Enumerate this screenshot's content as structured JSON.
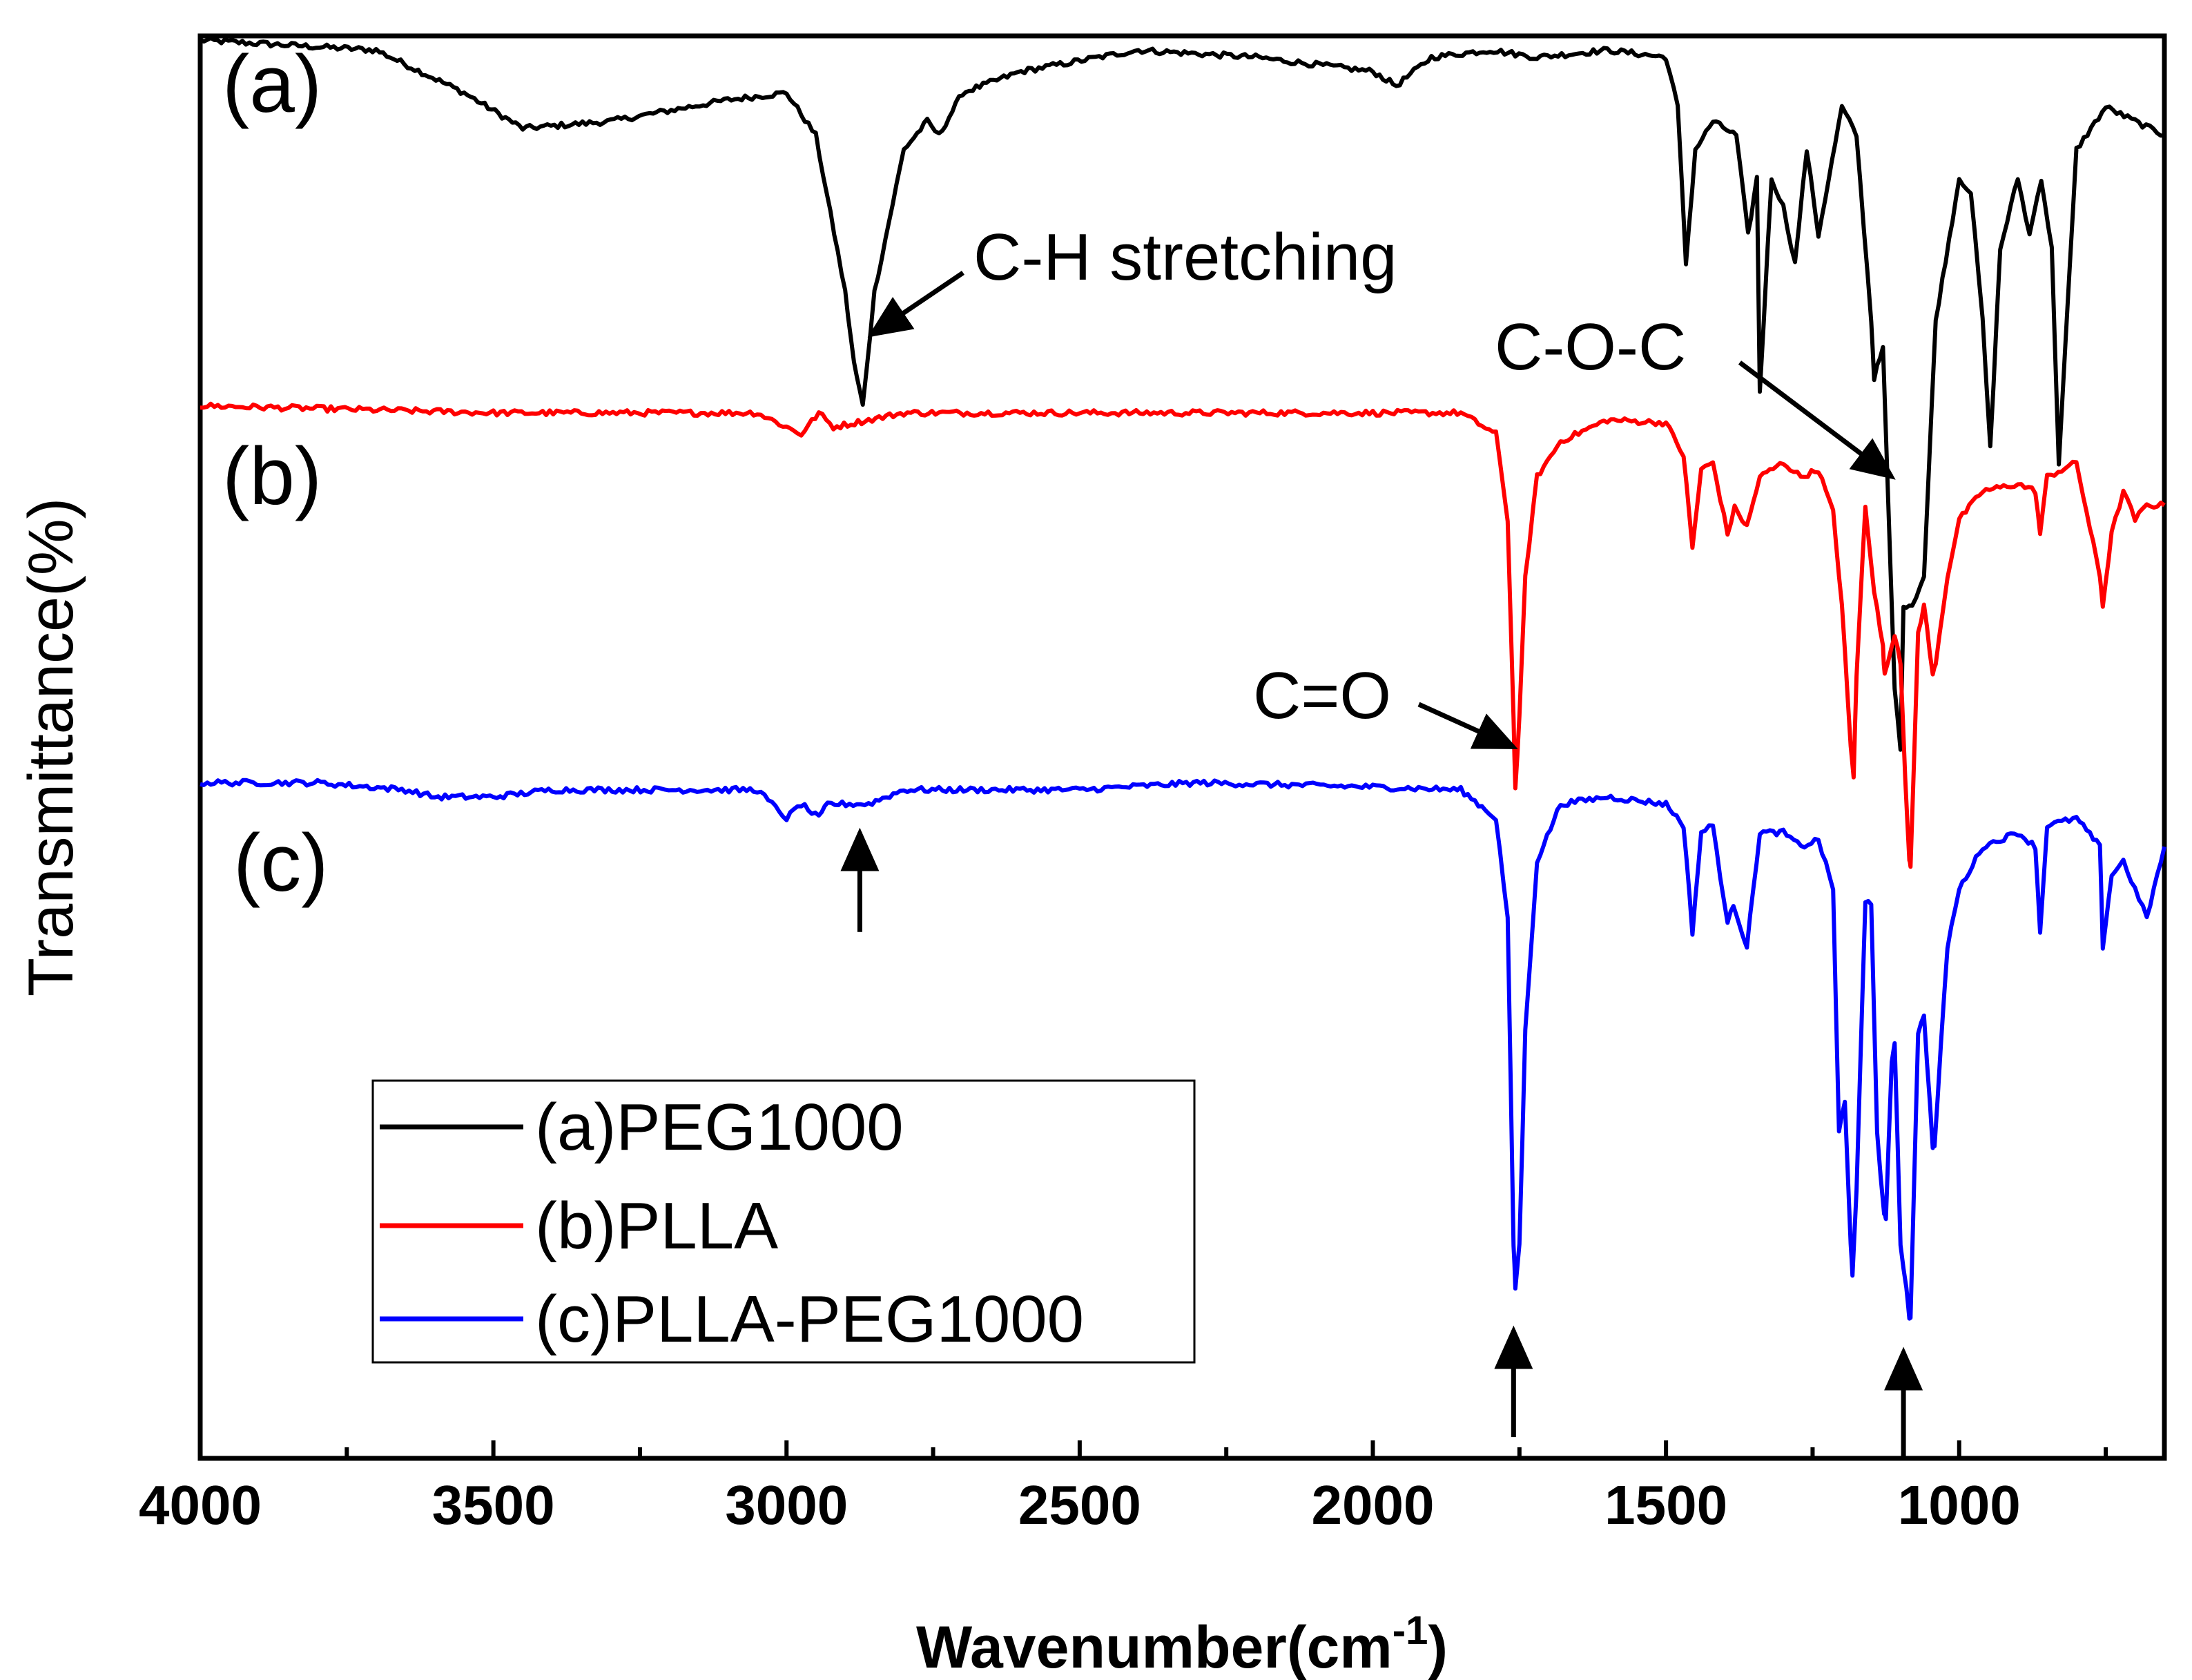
{
  "chart_data": {
    "type": "line",
    "title": "",
    "xlabel": "Wavenumber(cm",
    "xlabel_sup": "-1",
    "xlabel_close": ")",
    "ylabel": "Transmittance(%)",
    "xlim": [
      4000,
      650
    ],
    "ylim": [
      0,
      1
    ],
    "x_inverted": true,
    "grid": false,
    "xticks": [
      4000,
      3500,
      3000,
      2500,
      2000,
      1500,
      1000
    ],
    "xtick_labels": [
      "4000",
      "3500",
      "3000",
      "2500",
      "2000",
      "1500",
      "1000"
    ],
    "legend": {
      "position": "lower-left",
      "entries": [
        "(a)PEG1000",
        "(b)PLLA",
        "(c)PLLA-PEG1000"
      ]
    },
    "panel_labels": [
      "(a)",
      "(b)",
      "(c)"
    ],
    "series": [
      {
        "name": "(a)PEG1000",
        "color": "#000000",
        "baseline": 0.997,
        "x": [
          4000,
          3700,
          3550,
          3450,
          3300,
          3100,
          3000,
          2950,
          2900,
          2885,
          2870,
          2850,
          2800,
          2760,
          2740,
          2700,
          2600,
          2400,
          2200,
          2000,
          1960,
          1900,
          1800,
          1720,
          1600,
          1500,
          1480,
          1466,
          1450,
          1420,
          1380,
          1360,
          1345,
          1340,
          1320,
          1300,
          1280,
          1260,
          1240,
          1200,
          1175,
          1150,
          1145,
          1130,
          1110,
          1100,
          1095,
          1080,
          1060,
          1040,
          1000,
          980,
          960,
          947,
          930,
          900,
          880,
          860,
          842,
          830,
          800,
          750,
          700,
          650
        ],
        "y": [
          0.997,
          0.99,
          0.96,
          0.935,
          0.94,
          0.955,
          0.96,
          0.93,
          0.82,
          0.77,
          0.74,
          0.82,
          0.92,
          0.94,
          0.93,
          0.96,
          0.975,
          0.99,
          0.985,
          0.975,
          0.965,
          0.985,
          0.99,
          0.985,
          0.99,
          0.985,
          0.95,
          0.84,
          0.92,
          0.94,
          0.93,
          0.86,
          0.9,
          0.75,
          0.9,
          0.88,
          0.84,
          0.92,
          0.86,
          0.95,
          0.93,
          0.8,
          0.76,
          0.78,
          0.54,
          0.5,
          0.6,
          0.6,
          0.62,
          0.8,
          0.9,
          0.89,
          0.8,
          0.71,
          0.85,
          0.9,
          0.86,
          0.9,
          0.85,
          0.7,
          0.92,
          0.95,
          0.94,
          0.93
        ]
      },
      {
        "name": "(b)PLLA",
        "color": "#ff0000",
        "baseline": 0.74,
        "x": [
          4000,
          3500,
          3050,
          3000,
          2975,
          2945,
          2920,
          2800,
          2500,
          2000,
          1850,
          1790,
          1770,
          1760,
          1757,
          1750,
          1740,
          1720,
          1680,
          1600,
          1500,
          1470,
          1455,
          1440,
          1420,
          1395,
          1383,
          1370,
          1362,
          1340,
          1300,
          1270,
          1240,
          1215,
          1200,
          1185,
          1180,
          1175,
          1160,
          1145,
          1130,
          1127,
          1110,
          1100,
          1092,
          1085,
          1083,
          1070,
          1060,
          1045,
          1040,
          1020,
          1000,
          960,
          900,
          870,
          862,
          850,
          800,
          760,
          755,
          740,
          720,
          700,
          680,
          650
        ],
        "y": [
          0.74,
          0.735,
          0.735,
          0.725,
          0.72,
          0.735,
          0.725,
          0.735,
          0.735,
          0.735,
          0.735,
          0.72,
          0.66,
          0.52,
          0.47,
          0.52,
          0.62,
          0.69,
          0.715,
          0.73,
          0.728,
          0.705,
          0.64,
          0.695,
          0.7,
          0.65,
          0.668,
          0.66,
          0.655,
          0.69,
          0.7,
          0.69,
          0.695,
          0.665,
          0.6,
          0.5,
          0.48,
          0.55,
          0.67,
          0.61,
          0.57,
          0.55,
          0.58,
          0.56,
          0.48,
          0.42,
          0.415,
          0.58,
          0.6,
          0.55,
          0.56,
          0.62,
          0.66,
          0.68,
          0.685,
          0.68,
          0.65,
          0.69,
          0.7,
          0.62,
          0.6,
          0.65,
          0.68,
          0.66,
          0.67,
          0.67
        ]
      },
      {
        "name": "(c)PLLA-PEG1000",
        "color": "#0000ff",
        "baseline": 0.475,
        "x": [
          4000,
          3800,
          3650,
          3600,
          3500,
          3400,
          3050,
          3000,
          2975,
          2945,
          2930,
          2880,
          2860,
          2800,
          2500,
          2300,
          2000,
          1850,
          1790,
          1770,
          1760,
          1757,
          1750,
          1740,
          1720,
          1680,
          1600,
          1500,
          1470,
          1455,
          1440,
          1420,
          1395,
          1385,
          1370,
          1362,
          1340,
          1300,
          1270,
          1240,
          1215,
          1205,
          1195,
          1185,
          1182,
          1175,
          1160,
          1150,
          1140,
          1128,
          1125,
          1115,
          1110,
          1100,
          1090,
          1085,
          1083,
          1070,
          1060,
          1045,
          1042,
          1020,
          1000,
          960,
          900,
          870,
          862,
          850,
          800,
          760,
          755,
          740,
          720,
          700,
          680,
          650
        ],
        "y": [
          0.475,
          0.475,
          0.47,
          0.465,
          0.465,
          0.47,
          0.47,
          0.45,
          0.46,
          0.45,
          0.46,
          0.46,
          0.46,
          0.47,
          0.47,
          0.475,
          0.472,
          0.47,
          0.45,
          0.38,
          0.15,
          0.12,
          0.15,
          0.3,
          0.42,
          0.46,
          0.465,
          0.46,
          0.445,
          0.37,
          0.44,
          0.445,
          0.375,
          0.39,
          0.37,
          0.36,
          0.44,
          0.44,
          0.43,
          0.435,
          0.4,
          0.23,
          0.25,
          0.15,
          0.13,
          0.19,
          0.39,
          0.39,
          0.23,
          0.17,
          0.17,
          0.28,
          0.29,
          0.15,
          0.12,
          0.1,
          0.1,
          0.3,
          0.31,
          0.22,
          0.22,
          0.36,
          0.4,
          0.43,
          0.44,
          0.43,
          0.37,
          0.445,
          0.45,
          0.43,
          0.36,
          0.41,
          0.42,
          0.4,
          0.38,
          0.43
        ]
      }
    ],
    "annotations": [
      {
        "label": "C-H stretching",
        "target_x": 2855,
        "target_y": 0.79
      },
      {
        "label": "C-O-C",
        "target_x": 1115,
        "target_y": 0.69
      },
      {
        "label": "C=O",
        "target_x": 1760,
        "target_y": 0.5
      }
    ],
    "marker_arrows": [
      {
        "x": 2875,
        "from_y": 0.37,
        "to_y": 0.44
      },
      {
        "x": 1760,
        "from_y": 0.015,
        "to_y": 0.09
      },
      {
        "x": 1095,
        "from_y": 0.0,
        "to_y": 0.075
      }
    ]
  }
}
